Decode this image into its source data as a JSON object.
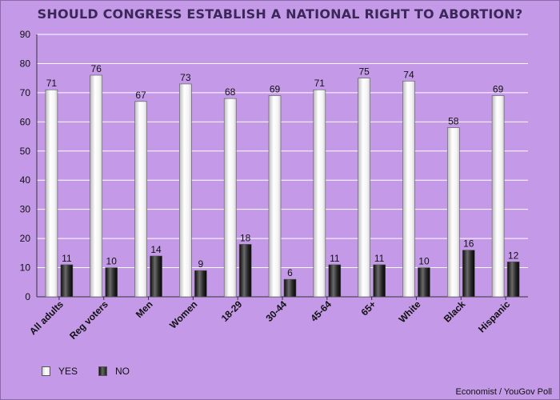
{
  "chart_data": {
    "type": "bar",
    "title": "SHOULD CONGRESS ESTABLISH A NATIONAL RIGHT TO ABORTION?",
    "categories": [
      "All adults",
      "Reg voters",
      "Men",
      "Women",
      "18-29",
      "30-44",
      "45-64",
      "65+",
      "White",
      "Black",
      "Hispanic"
    ],
    "series": [
      {
        "name": "YES",
        "values": [
          71,
          76,
          67,
          73,
          68,
          69,
          71,
          75,
          74,
          58,
          69
        ],
        "color": "#ffffff"
      },
      {
        "name": "NO",
        "values": [
          11,
          10,
          14,
          9,
          18,
          6,
          11,
          11,
          10,
          16,
          12
        ],
        "color": "#1a1a1a"
      }
    ],
    "ylim": [
      0,
      90
    ],
    "yticks": [
      0,
      10,
      20,
      30,
      40,
      50,
      60,
      70,
      80,
      90
    ],
    "grid": true,
    "legend_position": "bottom-left",
    "source": "Economist / YouGov Poll",
    "colors": {
      "background": "#c49ae8",
      "gridline": "#ffffff",
      "title": "#3a2858"
    }
  }
}
